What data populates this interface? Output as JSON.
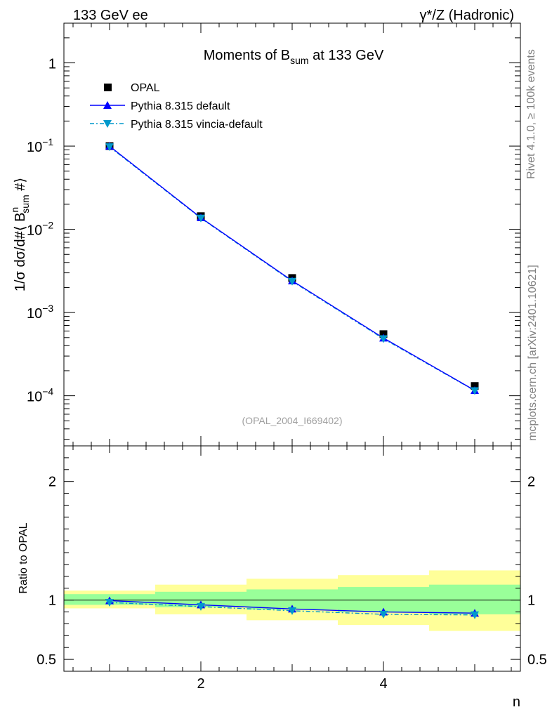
{
  "header": {
    "left": "133 GeV ee",
    "right": "γ*/Z (Hadronic)"
  },
  "side_labels": {
    "rivet": "Rivet 4.1.0, ≥ 100k events",
    "mcplots": "mcplots.cern.ch [arXiv:2401.10621]"
  },
  "chart_data": {
    "type": "line",
    "title": "Moments of B_sum at 133 GeV",
    "title_parts": {
      "pre": "Moments of B",
      "sub": "sum",
      "post": " at 133 GeV"
    },
    "analysis_id": "(OPAL_2004_I669402)",
    "xlabel": "n",
    "ylabel": "1/σ  dσ/d#⟨ B^n_sum #⟩",
    "ylabel_parts": {
      "pre": "1/σ  dσ/d#⟨ B",
      "sup": "n",
      "sub": "sum",
      "post": " #⟩"
    },
    "ratio_ylabel": "Ratio to OPAL",
    "xlim": [
      0.5,
      5.5
    ],
    "ylim": [
      2.5e-05,
      3.0
    ],
    "ratio_ylim": [
      0.4,
      2.3
    ],
    "x_ticks": [
      2,
      4
    ],
    "x_tick_labels": [
      "2",
      "4"
    ],
    "y_ticks": [
      1,
      0.1,
      0.01,
      0.001,
      0.0001
    ],
    "y_tick_labels": [
      {
        "base": "1",
        "exp": ""
      },
      {
        "base": "10",
        "exp": "−1"
      },
      {
        "base": "10",
        "exp": "−2"
      },
      {
        "base": "10",
        "exp": "−3"
      },
      {
        "base": "10",
        "exp": "−4"
      }
    ],
    "ratio_ticks": [
      0.5,
      1,
      2
    ],
    "ratio_tick_labels": [
      "0.5",
      "1",
      "2"
    ],
    "legend": [
      "OPAL",
      "Pythia 8.315 default",
      "Pythia 8.315 vincia-default"
    ],
    "x": [
      1,
      2,
      3,
      4,
      5
    ],
    "series": [
      {
        "name": "OPAL",
        "values": [
          0.1,
          0.0144,
          0.0026,
          0.00055,
          0.000131
        ],
        "color": "#000000"
      },
      {
        "name": "Pythia 8.315 default",
        "values": [
          0.0998,
          0.0138,
          0.00241,
          0.000494,
          0.000116
        ],
        "color": "#0000ff"
      },
      {
        "name": "Pythia 8.315 vincia-default",
        "values": [
          0.098,
          0.0136,
          0.00237,
          0.000484,
          0.000115
        ],
        "color": "#0099cc"
      }
    ],
    "ratio_series": [
      {
        "name": "Pythia 8.315 default",
        "values": [
          0.995,
          0.96,
          0.925,
          0.9,
          0.89
        ]
      },
      {
        "name": "Pythia 8.315 vincia-default",
        "values": [
          0.98,
          0.945,
          0.91,
          0.88,
          0.875
        ]
      }
    ],
    "bands": [
      {
        "xlo": 0.5,
        "xhi": 1.5,
        "stat": [
          0.96,
          1.05
        ],
        "total": [
          0.93,
          1.08
        ]
      },
      {
        "xlo": 1.5,
        "xhi": 2.5,
        "stat": [
          0.94,
          1.07
        ],
        "total": [
          0.88,
          1.13
        ]
      },
      {
        "xlo": 2.5,
        "xhi": 3.5,
        "stat": [
          0.92,
          1.09
        ],
        "total": [
          0.83,
          1.18
        ]
      },
      {
        "xlo": 3.5,
        "xhi": 4.5,
        "stat": [
          0.9,
          1.11
        ],
        "total": [
          0.79,
          1.21
        ]
      },
      {
        "xlo": 4.5,
        "xhi": 5.5,
        "stat": [
          0.88,
          1.13
        ],
        "total": [
          0.74,
          1.25
        ]
      }
    ],
    "colors": {
      "band_stat": "#99ff99",
      "band_total": "#ffff99"
    }
  }
}
